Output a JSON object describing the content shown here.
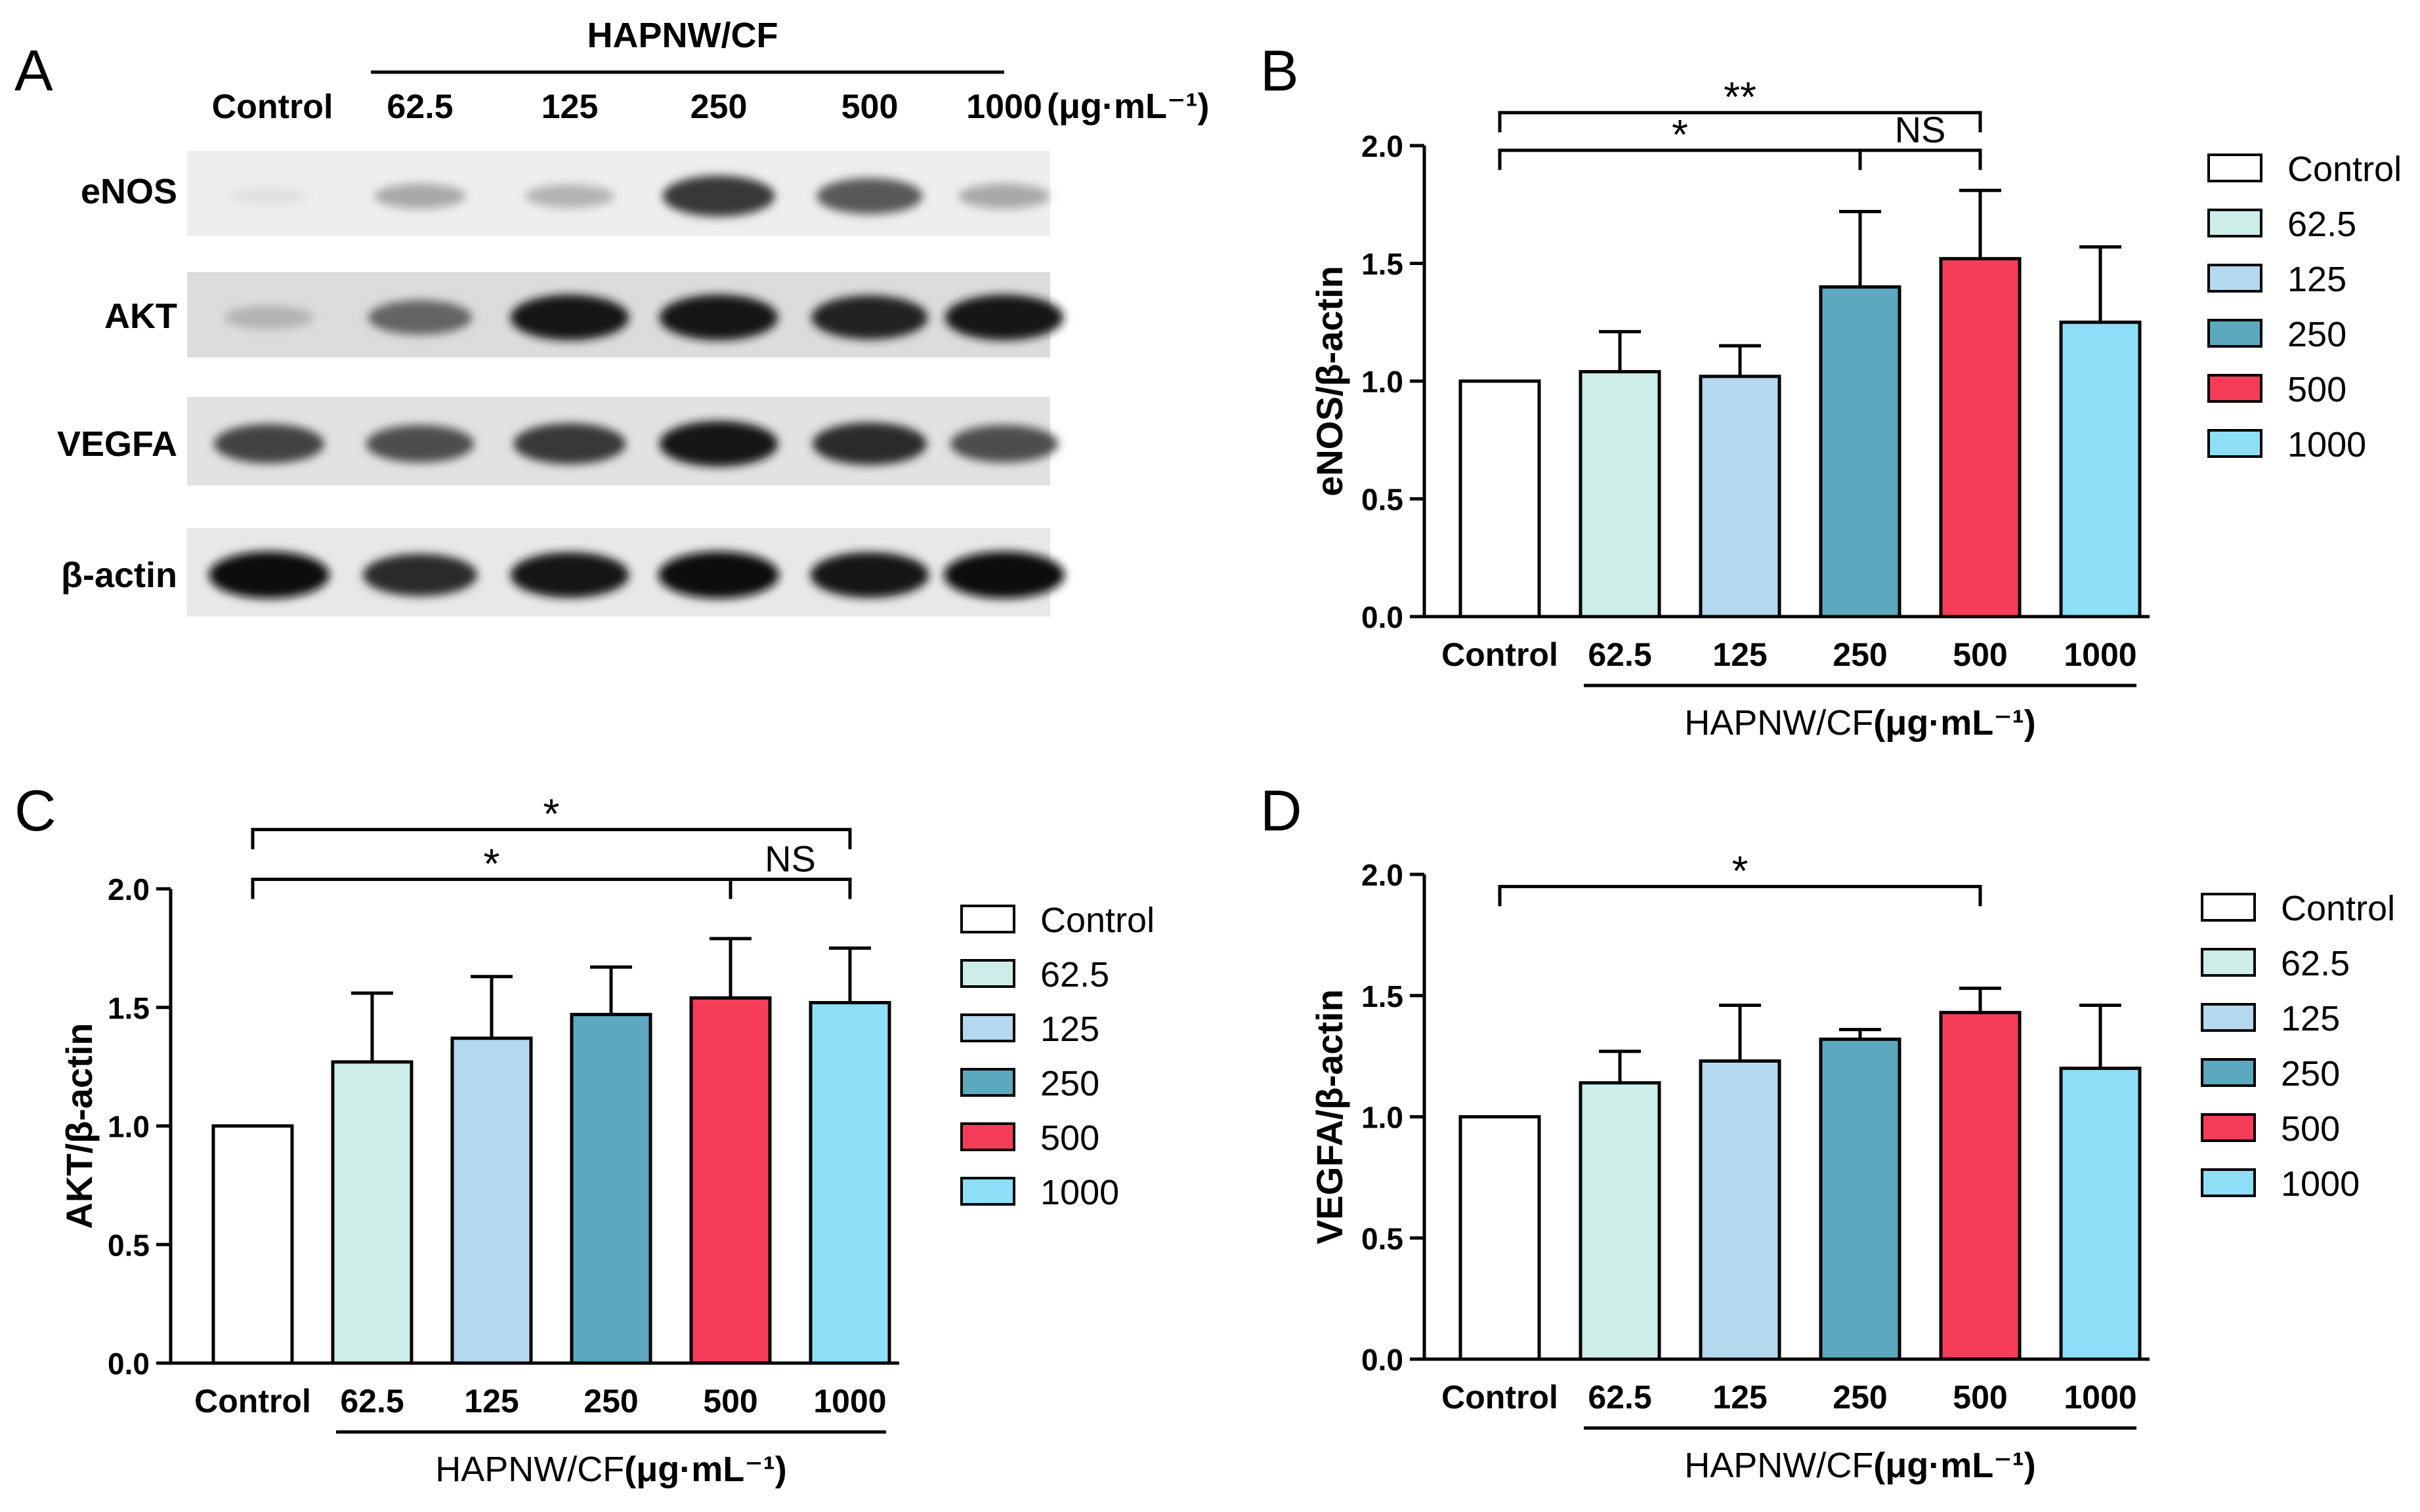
{
  "colors": {
    "Control": "#ffffff",
    "62.5": "#cdeee8",
    "125": "#b4d8ee",
    "250": "#5ca8bf",
    "500": "#f53d5a",
    "1000": "#8ddff8"
  },
  "panelA": {
    "letter": "A",
    "group_label": "HAPNW/CF",
    "columns": [
      "Control",
      "62.5",
      "125",
      "250",
      "500",
      "1000"
    ],
    "unit": "(μg·mL⁻¹)",
    "rows": [
      {
        "name": "eNOS",
        "intensity": [
          0.05,
          0.3,
          0.25,
          0.8,
          0.65,
          0.3
        ],
        "bg": "#eeeeee"
      },
      {
        "name": "AKT",
        "intensity": [
          0.25,
          0.6,
          0.95,
          0.95,
          0.9,
          0.95
        ],
        "bg": "#dcdcdc"
      },
      {
        "name": "VEGFA",
        "intensity": [
          0.75,
          0.7,
          0.8,
          0.95,
          0.85,
          0.7
        ],
        "bg": "#e2e2e2"
      },
      {
        "name": "β-actin",
        "intensity": [
          1.0,
          0.85,
          0.95,
          1.0,
          0.95,
          1.0
        ],
        "bg": "#e8e8e8"
      }
    ]
  },
  "chart_data": [
    {
      "panel": "B",
      "type": "bar",
      "ylabel": "eNOS/β-actin",
      "xlabel_main": "HAPNW/CF",
      "xlabel_unit": "(μg·mL⁻¹)",
      "categories": [
        "Control",
        "62.5",
        "125",
        "250",
        "500",
        "1000"
      ],
      "values": [
        1.0,
        1.04,
        1.02,
        1.4,
        1.52,
        1.25
      ],
      "errors": [
        0,
        0.17,
        0.13,
        0.32,
        0.29,
        0.32
      ],
      "ylim": [
        0,
        2.0
      ],
      "yticks": [
        "0.0",
        "0.5",
        "1.0",
        "1.5",
        "2.0"
      ],
      "legend": [
        "Control",
        "62.5",
        "125",
        "250",
        "500",
        "1000"
      ],
      "significance": [
        {
          "from": 0,
          "to": 4,
          "label": "**",
          "level": 2.14
        },
        {
          "from": 0,
          "to": 3,
          "label": "*",
          "level": 1.98
        },
        {
          "from": 3,
          "to": 4,
          "label": "NS",
          "level": 1.98
        }
      ]
    },
    {
      "panel": "C",
      "type": "bar",
      "ylabel": "AKT/β-actin",
      "xlabel_main": "HAPNW/CF",
      "xlabel_unit": "(μg·mL⁻¹)",
      "categories": [
        "Control",
        "62.5",
        "125",
        "250",
        "500",
        "1000"
      ],
      "values": [
        1.0,
        1.27,
        1.37,
        1.47,
        1.54,
        1.52
      ],
      "errors": [
        0,
        0.29,
        0.26,
        0.2,
        0.25,
        0.23
      ],
      "ylim": [
        0,
        2.0
      ],
      "yticks": [
        "0.0",
        "0.5",
        "1.0",
        "1.5",
        "2.0"
      ],
      "legend": [
        "Control",
        "62.5",
        "125",
        "250",
        "500",
        "1000"
      ],
      "significance": [
        {
          "from": 0,
          "to": 5,
          "label": "*",
          "level": 2.25
        },
        {
          "from": 0,
          "to": 4,
          "label": "*",
          "level": 2.04
        },
        {
          "from": 4,
          "to": 5,
          "label": "NS",
          "level": 2.04
        }
      ]
    },
    {
      "panel": "D",
      "type": "bar",
      "ylabel": "VEGFA/β-actin",
      "xlabel_main": "HAPNW/CF",
      "xlabel_unit": "(μg·mL⁻¹)",
      "categories": [
        "Control",
        "62.5",
        "125",
        "250",
        "500",
        "1000"
      ],
      "values": [
        1.0,
        1.14,
        1.23,
        1.32,
        1.43,
        1.2
      ],
      "errors": [
        0,
        0.13,
        0.23,
        0.04,
        0.1,
        0.26
      ],
      "ylim": [
        0,
        2.0
      ],
      "yticks": [
        "0.0",
        "0.5",
        "1.0",
        "1.5",
        "2.0"
      ],
      "legend": [
        "Control",
        "62.5",
        "125",
        "250",
        "500",
        "1000"
      ],
      "significance": [
        {
          "from": 0,
          "to": 4,
          "label": "*",
          "level": 1.95
        }
      ]
    }
  ]
}
